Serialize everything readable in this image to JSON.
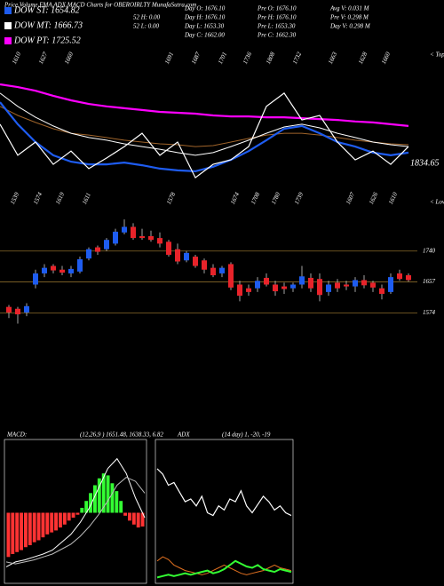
{
  "chart_data": [
    {
      "type": "line",
      "title": "Price,Volume,EMA,ADX,MACD Charts for OBEROIRLTY MunafaSutra.com",
      "ylim": [
        1400,
        1900
      ],
      "series": [
        {
          "name": "DOW PT: 1725.52",
          "color": "#ff00ff",
          "width": 2.2,
          "values": [
            1797,
            1788,
            1776,
            1759,
            1744,
            1732,
            1724,
            1718,
            1712,
            1706,
            1703,
            1700,
            1694,
            1691,
            1691,
            1688,
            1688,
            1685,
            1682,
            1679,
            1674,
            1671,
            1665,
            1659
          ]
        },
        {
          "color": "#a0642a",
          "width": 1,
          "values": [
            1724,
            1694,
            1671,
            1650,
            1635,
            1629,
            1621,
            1612,
            1606,
            1600,
            1597,
            1591,
            1594,
            1606,
            1618,
            1629,
            1635,
            1635,
            1629,
            1621,
            1612,
            1606,
            1600,
            1597
          ]
        },
        {
          "name": "DOW MT: 1666.73",
          "color": "#ffffff",
          "width": 1,
          "values": [
            1768,
            1724,
            1688,
            1659,
            1635,
            1621,
            1612,
            1600,
            1591,
            1582,
            1571,
            1562,
            1571,
            1591,
            1612,
            1635,
            1656,
            1665,
            1653,
            1635,
            1621,
            1606,
            1597,
            1591
          ]
        },
        {
          "name": "DOW ST: 1654.82",
          "color": "#1e5cf0",
          "width": 2.2,
          "values": [
            1738,
            1665,
            1606,
            1562,
            1541,
            1532,
            1532,
            1538,
            1529,
            1518,
            1512,
            1509,
            1524,
            1547,
            1576,
            1612,
            1650,
            1659,
            1635,
            1606,
            1591,
            1571,
            1562,
            1571
          ]
        },
        {
          "color": "#ffffff",
          "width": 1.2,
          "values": [
            1665,
            1562,
            1606,
            1532,
            1576,
            1518,
            1553,
            1591,
            1635,
            1562,
            1606,
            1488,
            1532,
            1547,
            1591,
            1724,
            1768,
            1679,
            1694,
            1606,
            1547,
            1576,
            1532,
            1591
          ]
        }
      ],
      "tops": [
        1610,
        1627,
        1660,
        1691,
        1687,
        1701,
        1736,
        1808,
        1732,
        1663,
        1628,
        1660
      ],
      "tops_label": "< Tops",
      "lows": [
        1539,
        1574,
        1619,
        1611,
        1578,
        1674,
        1708,
        1780,
        1739,
        1607,
        1626,
        1610
      ],
      "lows_label": "< Lows",
      "last_label": "1834.65",
      "info": [
        [
          "",
          "Day O: 1676.10",
          "Pre O: 1676.10",
          "Avg V: 0.031 M"
        ],
        [
          "52 H: 0.00",
          "Day H: 1676.10",
          "Pre H: 1676.10",
          "Pre V: 0.298 M"
        ],
        [
          "52 L: 0.00",
          "Day L: 1653.30",
          "Pre L: 1653.30",
          "Day V: 0.298 M"
        ],
        [
          "",
          "Day C: 1662.00",
          "Pre C: 1662.30",
          ""
        ]
      ]
    },
    {
      "type": "candlestick",
      "ylim": [
        1520,
        1842
      ],
      "up_color": "#1e5cf0",
      "down_color": "#e8232a",
      "levels": [
        1740,
        1657,
        1574
      ],
      "open": [
        1590,
        1585,
        1575,
        1650,
        1680,
        1700,
        1690,
        1680,
        1685,
        1720,
        1750,
        1745,
        1760,
        1790,
        1805,
        1780,
        1780,
        1775,
        1765,
        1745,
        1715,
        1725,
        1715,
        1695,
        1680,
        1705,
        1650,
        1640,
        1640,
        1668,
        1650,
        1645,
        1640,
        1650,
        1668,
        1665,
        1630,
        1655,
        1650,
        1645,
        1662,
        1655,
        1640,
        1630,
        1680,
        1675
      ],
      "high": [
        1595,
        1590,
        1600,
        1690,
        1705,
        1705,
        1700,
        1700,
        1725,
        1750,
        1755,
        1775,
        1800,
        1825,
        1815,
        1800,
        1795,
        1790,
        1770,
        1760,
        1740,
        1730,
        1720,
        1705,
        1700,
        1710,
        1660,
        1650,
        1670,
        1680,
        1660,
        1655,
        1655,
        1700,
        1680,
        1680,
        1660,
        1665,
        1660,
        1670,
        1675,
        1660,
        1650,
        1680,
        1690,
        1680
      ],
      "low": [
        1560,
        1545,
        1565,
        1640,
        1670,
        1680,
        1675,
        1670,
        1680,
        1715,
        1730,
        1740,
        1755,
        1785,
        1770,
        1770,
        1765,
        1750,
        1725,
        1705,
        1710,
        1695,
        1680,
        1670,
        1670,
        1635,
        1605,
        1620,
        1630,
        1645,
        1620,
        1625,
        1630,
        1640,
        1630,
        1605,
        1620,
        1630,
        1635,
        1630,
        1640,
        1630,
        1610,
        1625,
        1660,
        1658
      ],
      "close": [
        1575,
        1570,
        1592,
        1680,
        1695,
        1688,
        1682,
        1692,
        1718,
        1745,
        1738,
        1770,
        1792,
        1805,
        1775,
        1775,
        1770,
        1760,
        1730,
        1712,
        1735,
        1700,
        1690,
        1675,
        1695,
        1642,
        1620,
        1630,
        1660,
        1650,
        1632,
        1638,
        1650,
        1672,
        1640,
        1622,
        1650,
        1640,
        1645,
        1662,
        1648,
        1642,
        1625,
        1670,
        1665,
        1662
      ]
    },
    {
      "type": "combo",
      "title": "MACD:",
      "subtitle": "(12,26,9 ) 1651.48, 1638.33, 6.82",
      "ylim": [
        -70,
        70
      ],
      "values": [
        -45,
        -42,
        -40,
        -38,
        -35,
        -33,
        -30,
        -28,
        -25,
        -22,
        -20,
        -18,
        -15,
        -12,
        -8,
        -5,
        -2,
        5,
        12,
        20,
        28,
        35,
        40,
        38,
        30,
        22,
        12,
        -3,
        -8,
        -12,
        -15,
        -14
      ],
      "up_color": "#33ff33",
      "down_color": "#ff3333",
      "series": [
        {
          "color": "#ffffff",
          "values": [
            -55,
            -50,
            -48,
            -45,
            -42,
            -38,
            -30,
            -22,
            -10,
            5,
            25,
            45,
            55,
            40,
            15,
            -5
          ]
        },
        {
          "color": "#bbbbbb",
          "values": [
            -50,
            -52,
            -50,
            -48,
            -45,
            -42,
            -37,
            -32,
            -24,
            -14,
            -2,
            12,
            28,
            36,
            32,
            20
          ]
        }
      ]
    },
    {
      "type": "line",
      "title": "ADX",
      "subtitle": "(14 day) 1, -20, -19",
      "ylim": [
        0,
        100
      ],
      "series": [
        {
          "color": "#ffffff",
          "width": 1.2,
          "values": [
            82,
            78,
            70,
            72,
            65,
            58,
            60,
            55,
            62,
            50,
            48,
            55,
            52,
            60,
            58,
            66,
            55,
            50,
            56,
            62,
            58,
            52,
            55,
            50,
            48
          ]
        },
        {
          "color": "#e07020",
          "width": 1,
          "values": [
            15,
            18,
            16,
            12,
            10,
            8,
            7,
            6,
            5,
            6,
            8,
            10,
            12,
            10,
            8,
            6,
            5,
            6,
            7,
            8,
            10,
            12,
            10,
            9,
            8
          ]
        },
        {
          "color": "#33ff33",
          "width": 2,
          "values": [
            3,
            4,
            5,
            4,
            5,
            6,
            5,
            6,
            7,
            8,
            6,
            7,
            9,
            12,
            15,
            13,
            11,
            10,
            12,
            9,
            8,
            7,
            9,
            8,
            7
          ]
        }
      ]
    }
  ]
}
